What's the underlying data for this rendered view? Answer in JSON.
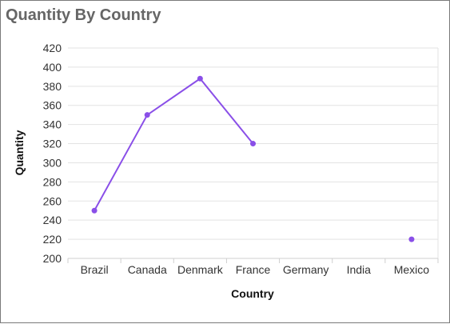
{
  "chart_data": {
    "type": "line",
    "title": "Quantity By Country",
    "xlabel": "Country",
    "ylabel": "Quantity",
    "categories": [
      "Brazil",
      "Canada",
      "Denmark",
      "France",
      "Germany",
      "India",
      "Mexico"
    ],
    "series": [
      {
        "values": [
          250,
          350,
          388,
          320,
          null,
          null,
          220
        ]
      }
    ],
    "ylim": [
      200,
      420
    ],
    "yticks": [
      200,
      220,
      240,
      260,
      280,
      300,
      320,
      340,
      360,
      380,
      400,
      420
    ],
    "grid": true,
    "legend": "none",
    "colors": {
      "line": "#8a4fe8",
      "grid": "#e3e3e3",
      "axis": "#cfcfcf"
    }
  }
}
